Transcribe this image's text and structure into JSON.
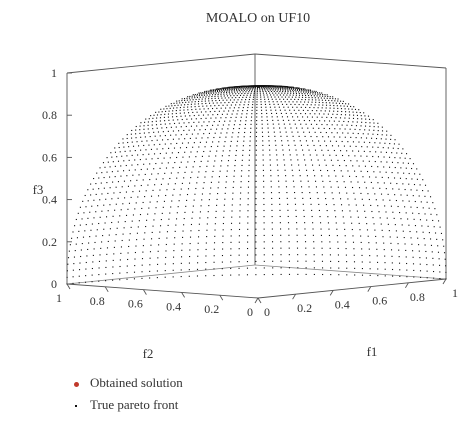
{
  "chart_data": {
    "type": "scatter",
    "title": "MOALO on UF10",
    "xlabel": "f1",
    "ylabel": "f2",
    "zlabel": "f3",
    "xlim": [
      0,
      1
    ],
    "ylim": [
      0,
      1
    ],
    "zlim": [
      0,
      1
    ],
    "x_ticks": [
      "0",
      "0.2",
      "0.4",
      "0.6",
      "0.8",
      "1"
    ],
    "y_ticks": [
      "0",
      "0.2",
      "0.4",
      "0.6",
      "0.8",
      "1"
    ],
    "z_ticks": [
      "0",
      "0.2",
      "0.4",
      "0.6",
      "0.8",
      "1"
    ],
    "legend_position": "bottom-left",
    "series": [
      {
        "name": "Obtained solution",
        "color": "#c0392b",
        "marker": "dot",
        "points": []
      },
      {
        "name": "True pareto front",
        "color": "#111111",
        "marker": "point",
        "surface": "f1^2 + f2^2 + f3^2 = 1, f1,f2,f3 >= 0",
        "grid_resolution": 50
      }
    ]
  }
}
